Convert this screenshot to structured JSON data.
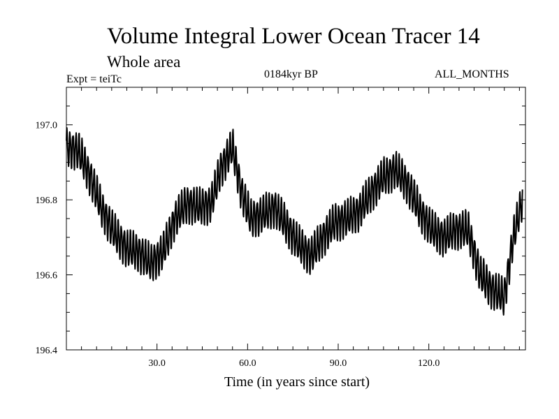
{
  "header": {
    "title": "Volume Integral Lower Ocean Tracer 14",
    "subtitle": "Whole area",
    "experiment": "Expt = teiTc",
    "period": "0184kyr BP",
    "months": "ALL_MONTHS"
  },
  "chart_data": {
    "type": "line",
    "title": "Volume Integral Lower Ocean Tracer 14",
    "subtitle": "Whole area",
    "xlabel": "Time (in years since start)",
    "ylabel": "",
    "xlim": [
      0,
      152
    ],
    "ylim": [
      196.4,
      197.1
    ],
    "x_ticks": [
      30,
      60,
      90,
      120
    ],
    "x_tick_labels": [
      "30.0",
      "60.0",
      "90.0",
      "120.0"
    ],
    "y_ticks": [
      196.4,
      196.6,
      196.8,
      197.0
    ],
    "y_tick_labels": [
      "196.4",
      "196.6",
      "196.8",
      "197.0"
    ],
    "grid": false,
    "oscillation_amplitude": 0.045,
    "series": [
      {
        "name": "Volume Integral Lower Ocean Tracer 14",
        "color": "#000000",
        "trend_x": [
          0,
          4,
          8,
          12,
          16,
          20,
          24,
          28,
          32,
          36,
          40,
          44,
          48,
          51,
          55,
          58,
          61,
          65,
          69,
          73,
          77,
          81,
          85,
          89,
          93,
          97,
          101,
          105,
          109,
          113,
          117,
          121,
          125,
          129,
          133,
          137,
          141,
          145,
          148,
          151
        ],
        "trend_y": [
          196.94,
          196.93,
          196.86,
          196.77,
          196.71,
          196.67,
          196.66,
          196.63,
          196.66,
          196.75,
          196.79,
          196.78,
          196.79,
          196.88,
          196.94,
          196.82,
          196.75,
          196.76,
          196.78,
          196.73,
          196.68,
          196.65,
          196.7,
          196.74,
          196.75,
          196.77,
          196.82,
          196.86,
          196.88,
          196.84,
          196.77,
          196.72,
          196.7,
          196.72,
          196.72,
          196.6,
          196.56,
          196.54,
          196.7,
          196.8
        ]
      }
    ]
  }
}
